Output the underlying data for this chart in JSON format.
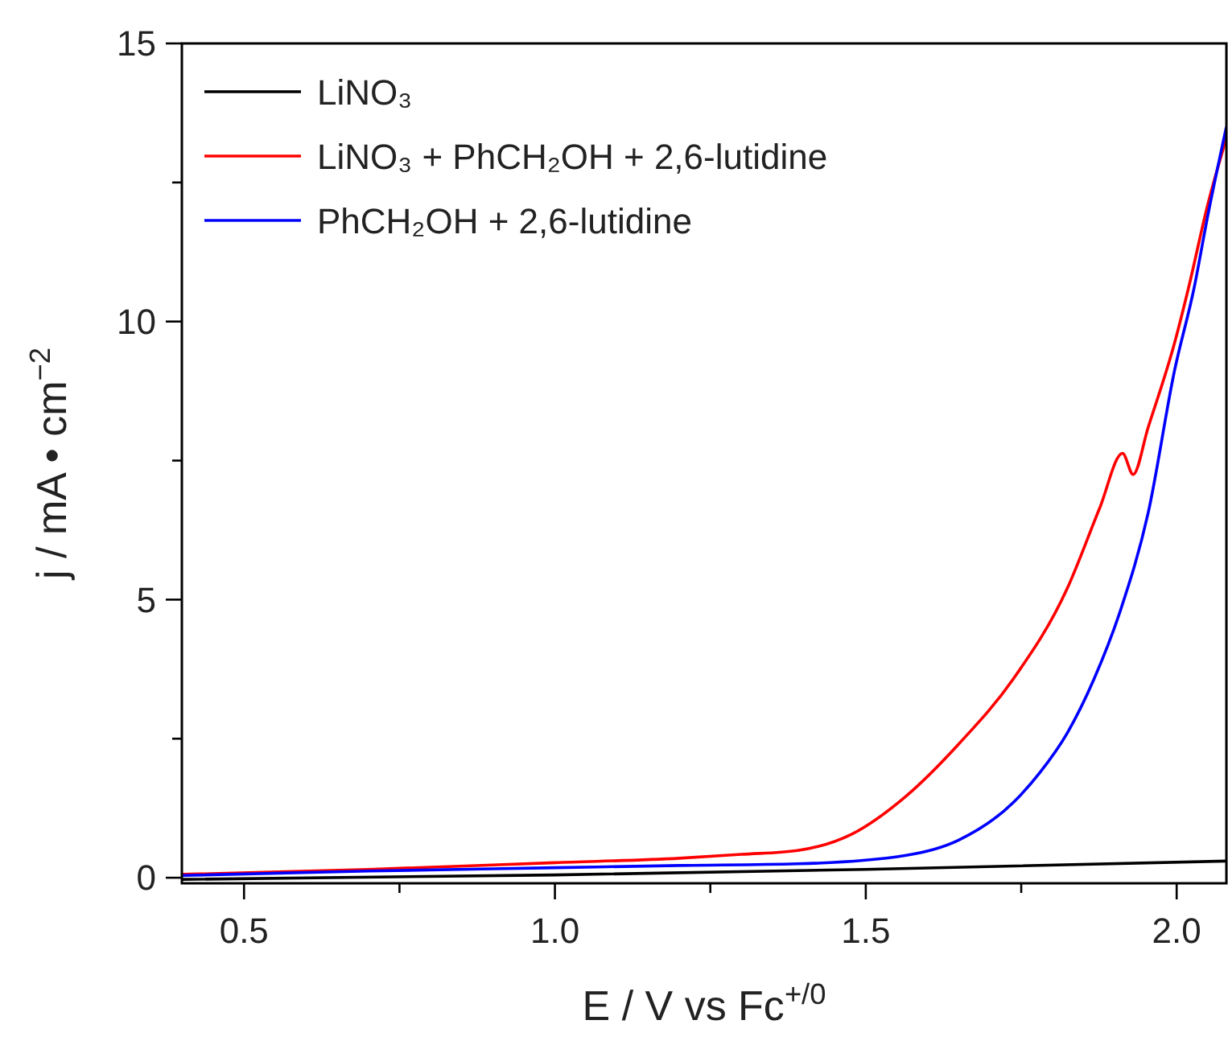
{
  "chart_data": {
    "type": "line",
    "xlabel": "E / V vs Fc$^{+/0}$",
    "ylabel": "j / mA • cm$^{−2}$",
    "xlim": [
      0.4,
      2.08
    ],
    "ylim": [
      -0.1,
      15
    ],
    "xticks": [
      {
        "value": 0.5,
        "label": "0.5"
      },
      {
        "value": 0.75,
        "label": null
      },
      {
        "value": 1.0,
        "label": "1.0"
      },
      {
        "value": 1.25,
        "label": null
      },
      {
        "value": 1.5,
        "label": "1.5"
      },
      {
        "value": 1.75,
        "label": null
      },
      {
        "value": 2.0,
        "label": "2.0"
      }
    ],
    "yticks": [
      0,
      {
        "value": 2.5,
        "label": null
      },
      5,
      {
        "value": 7.5,
        "label": null
      },
      10,
      {
        "value": 12.5,
        "label": null
      },
      15
    ],
    "legend": "top left",
    "grid": false,
    "line_style": "solid",
    "marker": "none",
    "series": [
      {
        "name": "LiNO₃",
        "color": "#000000",
        "x": [
          0.4,
          1.0,
          1.5,
          2.08
        ],
        "values": [
          -0.03,
          0.05,
          0.15,
          0.3
        ]
      },
      {
        "name": "LiNO₃ + PhCH₂OH + 2,6-lutidine",
        "color": "#ff0000",
        "x": [
          0.4,
          0.7,
          1.0,
          1.2,
          1.3,
          1.39,
          1.477,
          1.563,
          1.65,
          1.737,
          1.824,
          1.876,
          1.913,
          1.93,
          1.954,
          1.997,
          2.019,
          2.05,
          2.08
        ],
        "values": [
          0.06,
          0.15,
          0.27,
          0.35,
          0.42,
          0.49,
          0.78,
          1.45,
          2.41,
          3.57,
          5.2,
          6.64,
          7.63,
          7.25,
          8.09,
          9.63,
          10.6,
          12.1,
          13.3
        ]
      },
      {
        "name": "PhCH₂OH + 2,6-lutidine",
        "color": "#0000ff",
        "x": [
          0.4,
          0.7,
          1.0,
          1.2,
          1.39,
          1.563,
          1.65,
          1.737,
          1.78,
          1.824,
          1.867,
          1.91,
          1.954,
          1.997,
          2.028,
          2.05,
          2.08
        ],
        "values": [
          0.04,
          0.12,
          0.18,
          0.22,
          0.25,
          0.4,
          0.68,
          1.35,
          1.89,
          2.6,
          3.57,
          4.82,
          6.55,
          9.14,
          10.6,
          11.9,
          13.5
        ]
      }
    ]
  }
}
